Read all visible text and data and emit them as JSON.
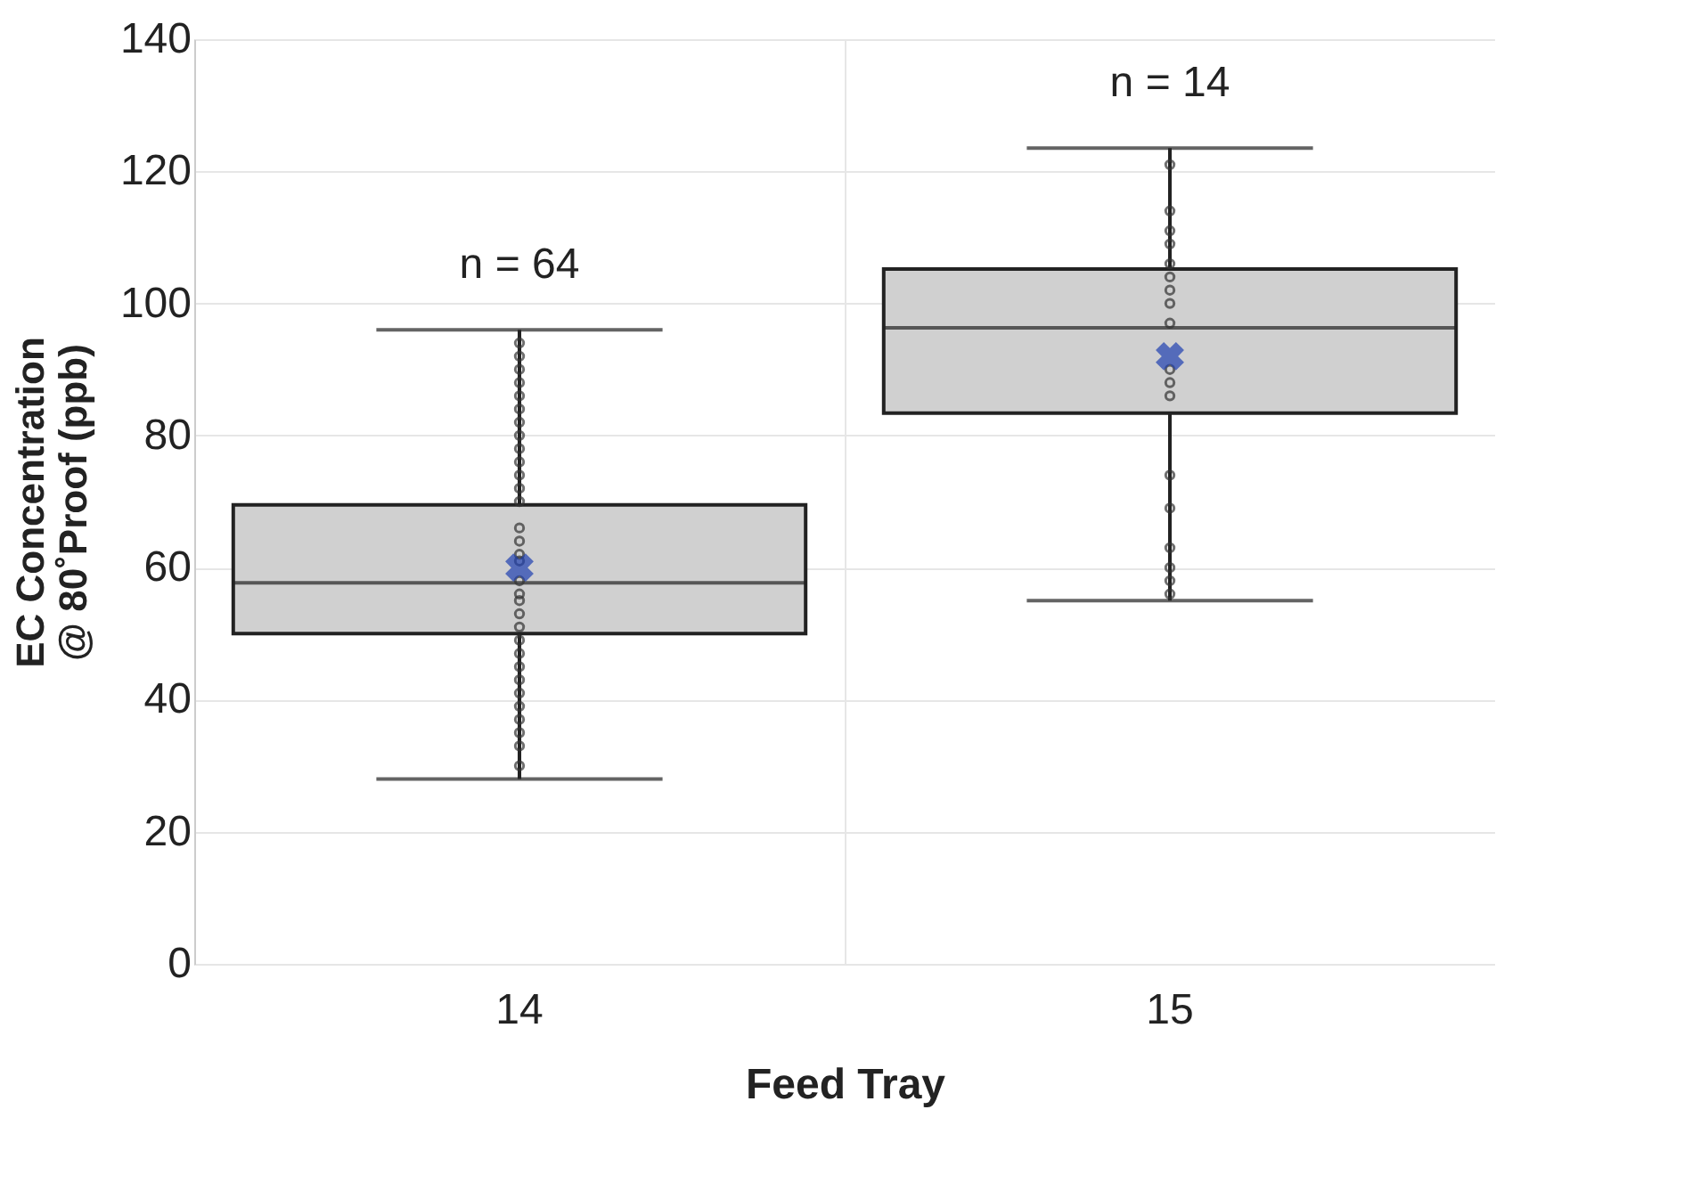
{
  "chart_data": {
    "type": "box",
    "xlabel": "Feed Tray",
    "ylabel": "EC Concentration\n@ 80˚Proof (ppb)",
    "categories": [
      "14",
      "15"
    ],
    "boxes": [
      {
        "low": 28,
        "q1": 50,
        "median": 57.7,
        "q3": 69.5,
        "high": 96,
        "mean": 60
      },
      {
        "low": 55,
        "q1": 83.4,
        "median": 96.3,
        "q3": 105.2,
        "high": 123.5,
        "mean": 92
      }
    ],
    "color": "#d0d0d0",
    "ylim": [
      0,
      140
    ],
    "yticks": [
      0,
      20,
      40,
      60,
      80,
      100,
      120,
      140
    ],
    "grid": true,
    "series": [
      {
        "type": "scatter",
        "x": [
          "14",
          "14",
          "14",
          "14",
          "14",
          "14",
          "14",
          "14",
          "14",
          "14",
          "14",
          "14",
          "14",
          "14",
          "14",
          "14",
          "14",
          "14",
          "14",
          "14",
          "14",
          "14",
          "14",
          "14",
          "14",
          "14",
          "14",
          "14",
          "14",
          "14",
          "14",
          "14"
        ],
        "values": [
          94,
          92,
          90,
          88,
          86,
          84,
          82,
          80,
          78,
          76,
          74,
          72,
          70,
          66,
          64,
          62,
          61,
          58,
          56,
          55,
          53,
          51,
          49,
          47,
          45,
          43,
          41,
          39,
          37,
          35,
          33,
          30
        ],
        "color": "#333333",
        "marker": "circle"
      },
      {
        "type": "scatter",
        "x": [
          "15",
          "15",
          "15",
          "15",
          "15",
          "15",
          "15",
          "15",
          "15",
          "15",
          "15",
          "15",
          "15",
          "15",
          "15",
          "15",
          "15",
          "15"
        ],
        "values": [
          121,
          114,
          111,
          109,
          106,
          104,
          102,
          100,
          97,
          90,
          88,
          86,
          74,
          69,
          63,
          60,
          58,
          56
        ],
        "color": "#333333",
        "marker": "circle"
      }
    ],
    "annotations": [
      "n = 64",
      "n = 14"
    ]
  }
}
